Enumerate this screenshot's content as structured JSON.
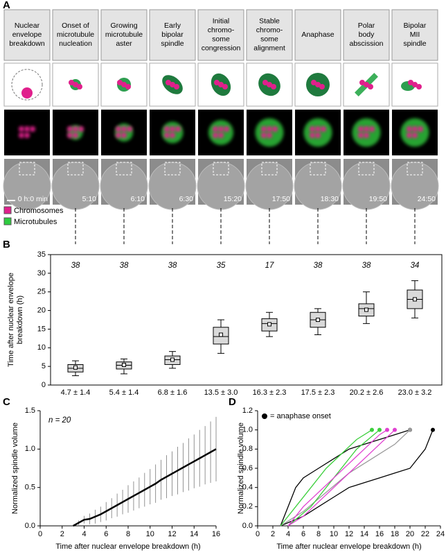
{
  "panel_a": {
    "panel": "A",
    "stages": [
      [
        "Nuclear",
        "envelope",
        "breakdown"
      ],
      [
        "Onset of",
        "microtubule",
        "nucleation"
      ],
      [
        "Growing",
        "microtubule",
        "aster"
      ],
      [
        "Early",
        "bipolar",
        "spindle"
      ],
      [
        "Initial",
        "chromo-",
        "some",
        "congression"
      ],
      [
        "Stable",
        "chromo-",
        "some",
        "alignment"
      ],
      [
        "Anaphase"
      ],
      [
        "Polar",
        "body",
        "abscission"
      ],
      [
        "Bipolar",
        "MII",
        "spindle"
      ]
    ],
    "times": [
      "0 h:0 min",
      "5:10",
      "6:10",
      "6:30",
      "15:20",
      "17:50",
      "18:30",
      "19:50",
      "24:50"
    ],
    "legend": [
      {
        "name": "Chromosomes",
        "color": "#e0208c"
      },
      {
        "name": "Microtubules",
        "color": "#2ecc40"
      }
    ]
  },
  "chart_data": [
    {
      "type": "box",
      "panel": "B",
      "ylabel": [
        "Time after nuclear envelope",
        "breakdown (h)"
      ],
      "ylim": [
        0,
        35
      ],
      "yticks": [
        0,
        5,
        10,
        15,
        20,
        25,
        30,
        35
      ],
      "n": [
        38,
        38,
        38,
        35,
        17,
        38,
        38,
        34
      ],
      "boxes": [
        {
          "whislo": 2.5,
          "q1": 3.5,
          "med": 4.5,
          "q3": 5.5,
          "whishi": 6.5,
          "mean": 4.7
        },
        {
          "whislo": 3,
          "q1": 4.3,
          "med": 5.3,
          "q3": 6.2,
          "whishi": 7,
          "mean": 5.4
        },
        {
          "whislo": 4.5,
          "q1": 5.5,
          "med": 6.8,
          "q3": 7.8,
          "whishi": 9,
          "mean": 6.8
        },
        {
          "whislo": 8.5,
          "q1": 11,
          "med": 13,
          "q3": 15.5,
          "whishi": 17.5,
          "mean": 13.5
        },
        {
          "whislo": 13,
          "q1": 14.5,
          "med": 16.5,
          "q3": 17.8,
          "whishi": 19.5,
          "mean": 16.3
        },
        {
          "whislo": 13.5,
          "q1": 15.5,
          "med": 17.5,
          "q3": 19.5,
          "whishi": 20.5,
          "mean": 17.5
        },
        {
          "whislo": 16.5,
          "q1": 18.5,
          "med": 20.5,
          "q3": 21.8,
          "whishi": 25,
          "mean": 20.2
        },
        {
          "whislo": 18,
          "q1": 20.5,
          "med": 23,
          "q3": 25.5,
          "whishi": 28,
          "mean": 23.0
        }
      ],
      "summary_labels": [
        "4.7 ± 1.4",
        "5.4 ± 1.4",
        "6.8 ± 1.6",
        "13.5 ± 3.0",
        "16.3 ± 2.3",
        "17.5 ± 2.3",
        "20.2 ± 2.6",
        "23.0 ± 3.2"
      ]
    },
    {
      "type": "line",
      "panel": "C",
      "annotation": "n = 20",
      "xlabel": "Time after nuclear envelope breakdown (h)",
      "ylabel": "Normalized spindle volume",
      "xlim": [
        0,
        16
      ],
      "xticks": [
        0,
        2,
        4,
        6,
        8,
        10,
        12,
        14,
        16
      ],
      "ylim": [
        0,
        1.5
      ],
      "yticks": [
        {
          "value": 0,
          "label": "0.0"
        },
        {
          "value": 0.5,
          "label": "0.5"
        },
        {
          "value": 1,
          "label": "1.0"
        },
        {
          "value": 1.5,
          "label": "1.5"
        }
      ],
      "x": [
        3,
        3.5,
        4,
        4.5,
        5,
        5.5,
        6,
        6.5,
        7,
        7.5,
        8,
        8.5,
        9,
        9.5,
        10,
        10.5,
        11,
        11.5,
        12,
        12.5,
        13,
        13.5,
        14,
        14.5,
        15,
        15.5,
        16
      ],
      "series": [
        {
          "color": "#000000",
          "values": [
            0,
            0.04,
            0.08,
            0.09,
            0.12,
            0.15,
            0.19,
            0.23,
            0.27,
            0.31,
            0.35,
            0.39,
            0.43,
            0.47,
            0.51,
            0.55,
            0.6,
            0.64,
            0.68,
            0.72,
            0.76,
            0.8,
            0.84,
            0.88,
            0.92,
            0.96,
            1.0
          ],
          "errors": [
            0,
            0.03,
            0.05,
            0.07,
            0.09,
            0.1,
            0.12,
            0.13,
            0.15,
            0.16,
            0.18,
            0.19,
            0.2,
            0.22,
            0.23,
            0.25,
            0.26,
            0.28,
            0.29,
            0.31,
            0.32,
            0.34,
            0.35,
            0.37,
            0.38,
            0.4,
            0.42
          ]
        }
      ]
    },
    {
      "type": "line",
      "panel": "D",
      "annotation": "= anaphase onset",
      "xlabel": "Time after nuclear envelope breakdown (h)",
      "ylabel": "Normalized spindle volume",
      "xlim": [
        0,
        24
      ],
      "xticks": [
        0,
        2,
        4,
        6,
        8,
        10,
        12,
        14,
        16,
        18,
        20,
        22,
        24
      ],
      "ylim": [
        0,
        1.2
      ],
      "yticks": [
        {
          "value": 0,
          "label": "0.0"
        },
        {
          "value": 0.2,
          "label": "0.2"
        },
        {
          "value": 0.4,
          "label": "0.4"
        },
        {
          "value": 0.6,
          "label": "0.6"
        },
        {
          "value": 0.8,
          "label": "0.8"
        },
        {
          "value": 1,
          "label": "1.0"
        },
        {
          "value": 1.2,
          "label": "1.2"
        }
      ],
      "series": [
        {
          "color": "#000000",
          "x": [
            3,
            6,
            8,
            10,
            12,
            14,
            16,
            18,
            20,
            22,
            23
          ],
          "values": [
            0,
            0.1,
            0.2,
            0.3,
            0.4,
            0.45,
            0.5,
            0.55,
            0.6,
            0.8,
            1.0
          ]
        },
        {
          "color": "#000000",
          "x": [
            3,
            4,
            5,
            6,
            8,
            10,
            12,
            14,
            16,
            18,
            20
          ],
          "values": [
            0,
            0.2,
            0.4,
            0.5,
            0.6,
            0.7,
            0.8,
            0.85,
            0.9,
            0.95,
            1.0
          ]
        },
        {
          "color": "#999999",
          "x": [
            3,
            6,
            9,
            12,
            15,
            18,
            20
          ],
          "values": [
            0,
            0.15,
            0.35,
            0.55,
            0.7,
            0.85,
            1.0
          ]
        },
        {
          "color": "#3ccf3c",
          "x": [
            3,
            5,
            7,
            9,
            11,
            13,
            15
          ],
          "values": [
            0,
            0.2,
            0.4,
            0.6,
            0.75,
            0.9,
            1.0
          ]
        },
        {
          "color": "#3ccf3c",
          "x": [
            4,
            7,
            10,
            13,
            16
          ],
          "values": [
            0,
            0.2,
            0.5,
            0.8,
            1.0
          ]
        },
        {
          "color": "#e040d0",
          "x": [
            4,
            6,
            8,
            10,
            12,
            14,
            16,
            17
          ],
          "values": [
            0,
            0.2,
            0.35,
            0.5,
            0.65,
            0.8,
            0.95,
            1.0
          ]
        },
        {
          "color": "#e040d0",
          "x": [
            4,
            6,
            8,
            10,
            12,
            14,
            16,
            18
          ],
          "values": [
            0,
            0.1,
            0.25,
            0.4,
            0.55,
            0.7,
            0.85,
            1.0
          ]
        }
      ]
    }
  ]
}
